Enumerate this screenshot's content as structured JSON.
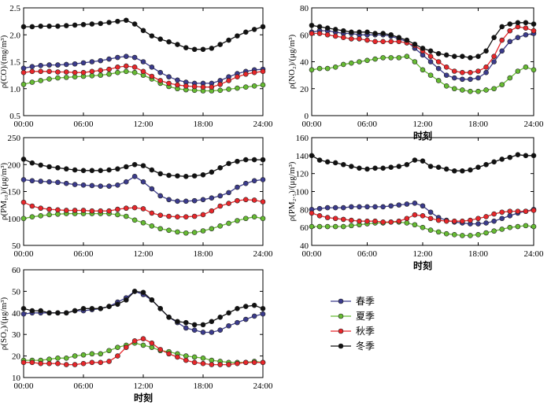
{
  "series_styles": [
    {
      "name": "春季",
      "color": "#3b3b8c"
    },
    {
      "name": "夏季",
      "color": "#66bb33"
    },
    {
      "name": "秋季",
      "color": "#e8262a"
    },
    {
      "name": "冬季",
      "color": "#111111"
    }
  ],
  "legend": [
    "春季",
    "夏季",
    "秋季",
    "冬季"
  ],
  "chart_data": [
    {
      "id": "co",
      "type": "line",
      "ylabel": "ρ(CO)/(mg/m³)",
      "ylim": [
        0.5,
        2.5
      ],
      "yticks": [
        "0.5",
        "1.0",
        "1.5",
        "2.0",
        "2.5"
      ],
      "xticks": [
        "00:00",
        "06:00",
        "12:00",
        "18:00",
        "24:00"
      ],
      "xlabel": "",
      "series": [
        {
          "name": "春季",
          "values": [
            1.38,
            1.41,
            1.43,
            1.44,
            1.44,
            1.45,
            1.46,
            1.48,
            1.5,
            1.52,
            1.55,
            1.58,
            1.6,
            1.58,
            1.5,
            1.4,
            1.3,
            1.22,
            1.16,
            1.12,
            1.1,
            1.1,
            1.1,
            1.15,
            1.22,
            1.28,
            1.32,
            1.35,
            1.36
          ]
        },
        {
          "name": "夏季",
          "values": [
            1.08,
            1.12,
            1.15,
            1.18,
            1.2,
            1.21,
            1.22,
            1.23,
            1.24,
            1.25,
            1.27,
            1.3,
            1.32,
            1.3,
            1.25,
            1.18,
            1.1,
            1.04,
            1.0,
            0.98,
            0.97,
            0.96,
            0.96,
            0.97,
            0.99,
            1.01,
            1.03,
            1.05,
            1.07
          ]
        },
        {
          "name": "秋季",
          "values": [
            1.3,
            1.32,
            1.32,
            1.32,
            1.31,
            1.31,
            1.3,
            1.3,
            1.32,
            1.34,
            1.36,
            1.4,
            1.42,
            1.4,
            1.32,
            1.23,
            1.15,
            1.1,
            1.07,
            1.05,
            1.04,
            1.03,
            1.03,
            1.08,
            1.15,
            1.22,
            1.27,
            1.3,
            1.32
          ]
        },
        {
          "name": "冬季",
          "values": [
            2.15,
            2.15,
            2.16,
            2.16,
            2.16,
            2.17,
            2.18,
            2.19,
            2.2,
            2.21,
            2.23,
            2.25,
            2.27,
            2.2,
            2.08,
            1.98,
            1.92,
            1.87,
            1.82,
            1.76,
            1.73,
            1.73,
            1.75,
            1.82,
            1.9,
            1.98,
            2.05,
            2.1,
            2.15
          ]
        }
      ]
    },
    {
      "id": "no2",
      "type": "line",
      "ylabel": "ρ(NO₂)/(μg/m³)",
      "ylim": [
        0,
        80
      ],
      "yticks": [
        "0",
        "20",
        "40",
        "60",
        "80"
      ],
      "xticks": [
        "00:00",
        "06:00",
        "12:00",
        "18:00",
        "24:00"
      ],
      "xlabel": "时刻",
      "series": [
        {
          "name": "春季",
          "values": [
            62,
            63,
            63,
            62,
            61,
            61,
            60,
            60,
            60,
            60,
            59,
            57,
            55,
            50,
            45,
            40,
            35,
            30,
            28,
            27,
            27,
            28,
            32,
            40,
            48,
            55,
            58,
            60,
            61
          ]
        },
        {
          "name": "夏季",
          "values": [
            34,
            35,
            35,
            36,
            38,
            39,
            40,
            41,
            42,
            43,
            43,
            43,
            44,
            40,
            34,
            30,
            26,
            22,
            20,
            19,
            18,
            18,
            19,
            20,
            23,
            28,
            33,
            36,
            34
          ]
        },
        {
          "name": "秋季",
          "values": [
            61,
            61,
            60,
            59,
            58,
            57,
            57,
            56,
            55,
            55,
            55,
            55,
            54,
            52,
            48,
            44,
            40,
            36,
            33,
            32,
            32,
            33,
            36,
            44,
            56,
            63,
            66,
            65,
            63
          ]
        },
        {
          "name": "冬季",
          "values": [
            67,
            66,
            65,
            64,
            63,
            62,
            62,
            62,
            61,
            61,
            60,
            58,
            56,
            53,
            50,
            48,
            46,
            45,
            44,
            44,
            43,
            44,
            48,
            58,
            66,
            68,
            69,
            69,
            68
          ]
        }
      ]
    },
    {
      "id": "pm10",
      "type": "line",
      "ylabel": "ρ(PM₁₀)/(μg/m³)",
      "ylim": [
        50,
        250
      ],
      "yticks": [
        "50",
        "100",
        "150",
        "200",
        "250"
      ],
      "xticks": [
        "00:00",
        "06:00",
        "12:00",
        "18:00",
        "24:00"
      ],
      "xlabel": "",
      "series": [
        {
          "name": "春季",
          "values": [
            172,
            170,
            169,
            168,
            167,
            165,
            163,
            162,
            161,
            160,
            160,
            162,
            168,
            178,
            168,
            155,
            142,
            135,
            132,
            132,
            133,
            135,
            138,
            142,
            148,
            158,
            165,
            170,
            172
          ]
        },
        {
          "name": "夏季",
          "values": [
            100,
            103,
            105,
            107,
            108,
            109,
            109,
            109,
            109,
            109,
            109,
            107,
            104,
            97,
            92,
            86,
            81,
            78,
            75,
            73,
            74,
            77,
            81,
            86,
            91,
            96,
            100,
            103,
            100
          ]
        },
        {
          "name": "秋季",
          "values": [
            130,
            123,
            119,
            117,
            116,
            115,
            115,
            115,
            114,
            114,
            114,
            117,
            119,
            120,
            118,
            110,
            106,
            104,
            103,
            103,
            104,
            107,
            114,
            123,
            128,
            133,
            135,
            134,
            131
          ]
        },
        {
          "name": "冬季",
          "values": [
            210,
            203,
            199,
            196,
            194,
            192,
            190,
            189,
            189,
            189,
            190,
            192,
            196,
            200,
            198,
            190,
            183,
            180,
            179,
            178,
            179,
            181,
            186,
            194,
            202,
            206,
            209,
            209,
            209
          ]
        }
      ]
    },
    {
      "id": "pm25",
      "type": "line",
      "ylabel": "ρ(PM₂.₅)/(μg/m³)",
      "ylim": [
        40,
        160
      ],
      "yticks": [
        "40",
        "60",
        "80",
        "100",
        "120",
        "140",
        "160"
      ],
      "xticks": [
        "00:00",
        "06:00",
        "12:00",
        "18:00",
        "24:00"
      ],
      "xlabel": "时刻",
      "series": [
        {
          "name": "春季",
          "values": [
            80,
            81,
            82,
            82,
            82,
            83,
            83,
            83,
            83,
            83,
            84,
            85,
            86,
            87,
            84,
            77,
            71,
            68,
            66,
            65,
            64,
            64,
            65,
            67,
            70,
            73,
            76,
            78,
            80
          ]
        },
        {
          "name": "夏季",
          "values": [
            61,
            61,
            61,
            61,
            61,
            62,
            63,
            64,
            65,
            65,
            66,
            66,
            65,
            63,
            60,
            57,
            55,
            53,
            52,
            51,
            51,
            52,
            54,
            56,
            58,
            60,
            61,
            62,
            61
          ]
        },
        {
          "name": "秋季",
          "values": [
            76,
            73,
            71,
            70,
            69,
            68,
            67,
            67,
            67,
            66,
            66,
            67,
            70,
            74,
            73,
            70,
            68,
            67,
            67,
            67,
            68,
            70,
            72,
            75,
            77,
            78,
            78,
            78,
            79
          ]
        },
        {
          "name": "冬季",
          "values": [
            140,
            135,
            133,
            132,
            130,
            128,
            126,
            125,
            126,
            126,
            127,
            128,
            130,
            135,
            134,
            128,
            127,
            125,
            123,
            123,
            124,
            127,
            130,
            133,
            136,
            138,
            141,
            140,
            140
          ]
        }
      ]
    },
    {
      "id": "so2",
      "type": "line",
      "ylabel": "ρ(SO₂)/(μg/m³)",
      "ylim": [
        10,
        60
      ],
      "yticks": [
        "10",
        "20",
        "30",
        "40",
        "50",
        "60"
      ],
      "xticks": [
        "00:00",
        "06:00",
        "12:00",
        "18:00",
        "24:00"
      ],
      "xlabel": "时刻",
      "series": [
        {
          "name": "春季",
          "values": [
            39.5,
            40.0,
            40.0,
            40.0,
            40.0,
            40.0,
            41.0,
            41.0,
            41.5,
            42.0,
            43.0,
            45.0,
            47.0,
            50.0,
            48.5,
            46.0,
            42.0,
            38.0,
            35.5,
            33.0,
            32.0,
            31.0,
            31.0,
            32.0,
            34.0,
            35.5,
            37.0,
            38.5,
            39.5
          ]
        },
        {
          "name": "夏季",
          "values": [
            18.0,
            18.0,
            18.0,
            18.5,
            19.0,
            19.0,
            20.0,
            20.5,
            21.0,
            21.0,
            22.5,
            24.0,
            25.0,
            26.0,
            25.0,
            24.0,
            22.5,
            22.0,
            21.0,
            20.0,
            19.5,
            19.0,
            18.0,
            17.5,
            17.0,
            17.0,
            17.0,
            17.5,
            17.0
          ]
        },
        {
          "name": "秋季",
          "values": [
            17.0,
            17.0,
            16.5,
            16.5,
            16.5,
            16.0,
            16.0,
            16.5,
            17.0,
            17.0,
            17.5,
            20.0,
            24.0,
            27.0,
            28.0,
            26.0,
            23.0,
            21.0,
            19.5,
            18.0,
            17.0,
            16.5,
            16.0,
            16.0,
            16.0,
            16.5,
            17.0,
            17.0,
            17.0
          ]
        },
        {
          "name": "冬季",
          "values": [
            42.0,
            41.0,
            41.0,
            40.0,
            40.0,
            40.0,
            41.0,
            42.0,
            42.0,
            42.0,
            43.0,
            44.0,
            46.0,
            50.0,
            49.5,
            46.0,
            42.0,
            38.0,
            36.0,
            35.5,
            34.5,
            34.5,
            36.0,
            38.0,
            40.0,
            42.0,
            43.0,
            43.5,
            42.0
          ]
        }
      ]
    }
  ]
}
